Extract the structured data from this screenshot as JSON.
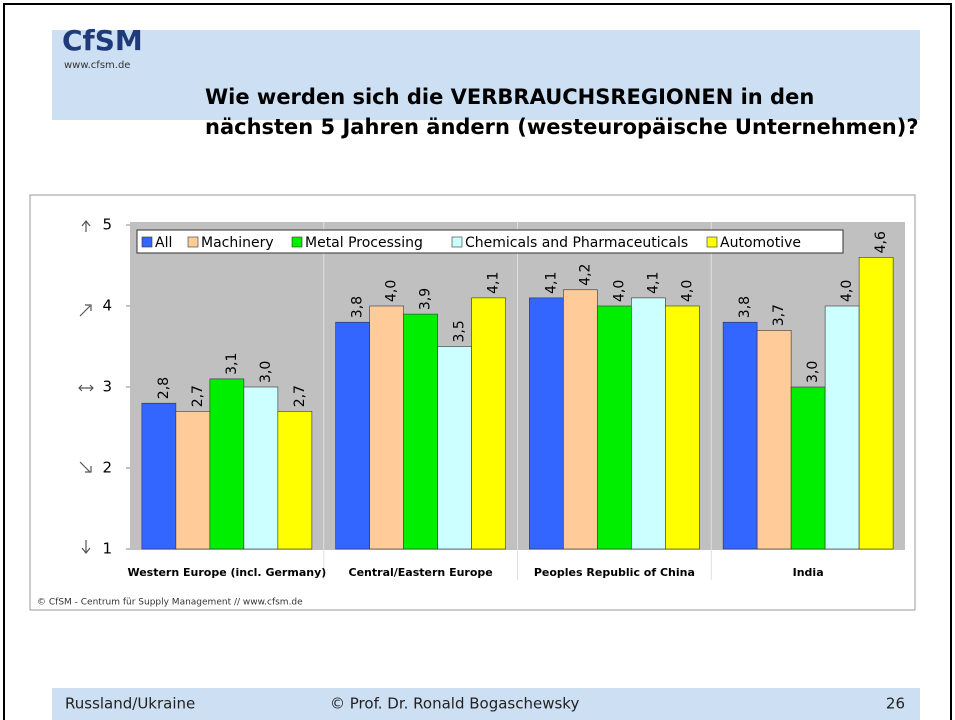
{
  "header": {
    "logo": "CfSM",
    "url": "www.cfsm.de",
    "title_lines": [
      "Wie werden sich die VERBRAUCHSREGIONEN in den",
      "nächsten 5 Jahren ändern (westeuropäische Unternehmen)?"
    ]
  },
  "chart_data": {
    "type": "bar",
    "categories": [
      "Western Europe (incl. Germany)",
      "Central/Eastern Europe",
      "Peoples Republic of China",
      "India"
    ],
    "series": [
      {
        "name": "All",
        "color": "#3366ff",
        "values": [
          2.8,
          3.8,
          4.1,
          3.8
        ],
        "value_labels": [
          "2,8",
          "3,8",
          "4,1",
          "3,8"
        ]
      },
      {
        "name": "Machinery",
        "color": "#ffcc99",
        "values": [
          2.7,
          4.0,
          4.2,
          3.7
        ],
        "value_labels": [
          "2,7",
          "4,0",
          "4,2",
          "3,7"
        ]
      },
      {
        "name": "Metal Processing",
        "color": "#00ee00",
        "values": [
          3.1,
          3.9,
          4.0,
          3.0
        ],
        "value_labels": [
          "3,1",
          "3,9",
          "4,0",
          "3,0"
        ]
      },
      {
        "name": "Chemicals and Pharmaceuticals",
        "color": "#ccffff",
        "values": [
          3.0,
          3.5,
          4.1,
          4.0
        ],
        "value_labels": [
          "3,0",
          "3,5",
          "4,1",
          "4,0"
        ]
      },
      {
        "name": "Automotive",
        "color": "#ffff00",
        "values": [
          2.7,
          4.1,
          4.0,
          4.6
        ],
        "value_labels": [
          "2,7",
          "4,1",
          "4,0",
          "4,6"
        ]
      }
    ],
    "ylim": [
      1,
      5
    ],
    "yticks": [
      1,
      2,
      3,
      4,
      5
    ],
    "legend": "top",
    "source": "© CfSM - Centrum für Supply Management // www.cfsm.de"
  },
  "footer": {
    "left": "Russland/Ukraine",
    "center": "© Prof. Dr. Ronald Bogaschewsky",
    "page": "26"
  }
}
